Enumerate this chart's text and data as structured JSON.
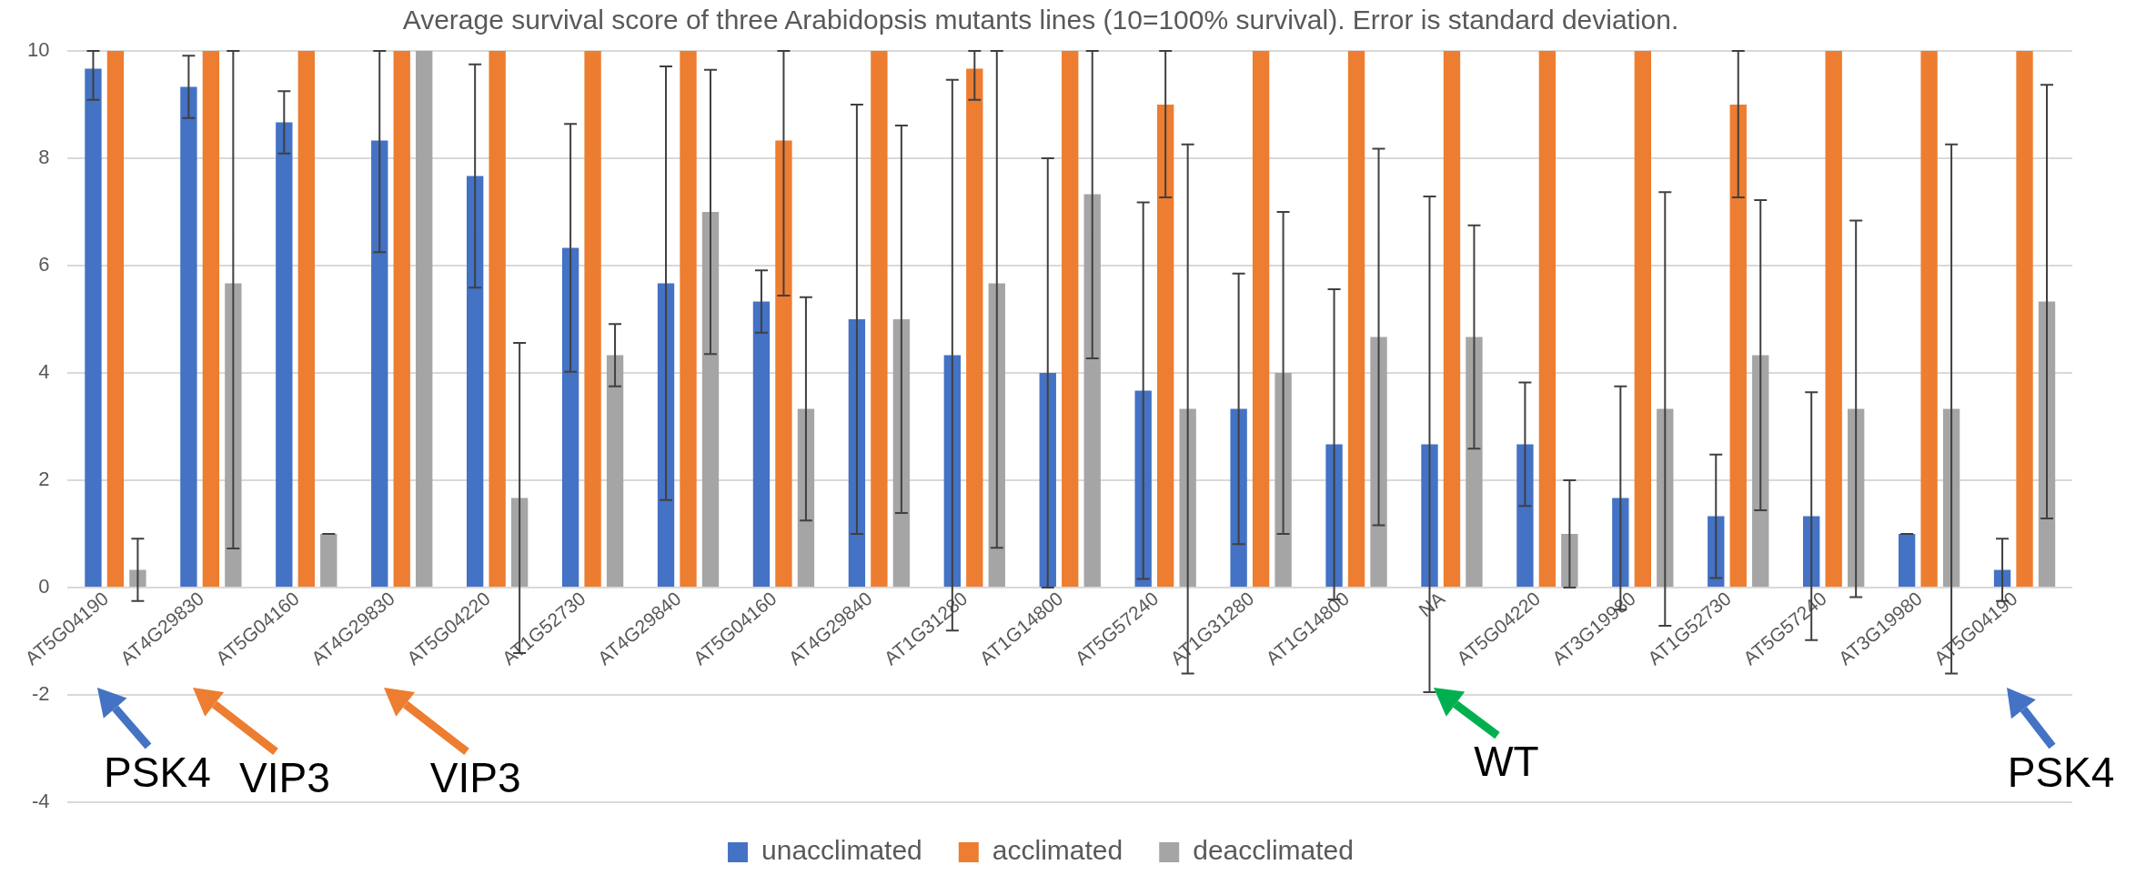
{
  "chart_data": {
    "type": "bar",
    "title": "Average survival score of three Arabidopsis mutants lines (10=100% survival). Error is standard deviation.",
    "categories": [
      "AT5G04190",
      "AT4G29830",
      "AT5G04160",
      "AT4G29830",
      "AT5G04220",
      "AT1G52730",
      "AT4G29840",
      "AT5G04160",
      "AT4G29840",
      "AT1G31280",
      "AT1G14800",
      "AT5G57240",
      "AT1G31280",
      "AT1G14800",
      "NA",
      "AT5G04220",
      "AT3G19980",
      "AT1G52730",
      "AT5G57240",
      "AT3G19980",
      "AT5G04190"
    ],
    "series": [
      {
        "name": "unacclimated",
        "color": "#4472c4",
        "values": [
          9.67,
          9.33,
          8.67,
          8.33,
          7.67,
          6.33,
          5.67,
          5.33,
          5,
          4.33,
          4,
          3.67,
          3.33,
          2.67,
          2.67,
          2.67,
          1.67,
          1.33,
          1.33,
          1,
          0.33
        ],
        "errors": [
          [
            9.09,
            10
          ],
          0.58,
          0.58,
          [
            6.25,
            10
          ],
          2.08,
          2.31,
          4.04,
          0.58,
          4,
          5.13,
          4,
          3.51,
          2.52,
          2.89,
          4.62,
          1.15,
          2.08,
          1.15,
          2.31,
          0,
          0.58
        ]
      },
      {
        "name": "acclimated",
        "color": "#ed7d31",
        "values": [
          10,
          10,
          10,
          10,
          10,
          10,
          10,
          8.33,
          10,
          9.67,
          10,
          9,
          10,
          10,
          10,
          10,
          10,
          9,
          10,
          10,
          10
        ],
        "errors": [
          null,
          null,
          null,
          null,
          null,
          null,
          null,
          [
            5.44,
            10
          ],
          null,
          [
            9.09,
            10
          ],
          null,
          [
            7.27,
            10
          ],
          null,
          null,
          null,
          null,
          null,
          [
            7.27,
            10
          ],
          null,
          null,
          null
        ]
      },
      {
        "name": "deacclimated",
        "color": "#a5a5a5",
        "values": [
          0.33,
          5.67,
          1,
          10,
          1.67,
          4.33,
          7,
          3.33,
          5,
          5.67,
          7.33,
          3.33,
          4,
          4.67,
          4.67,
          1,
          3.33,
          4.33,
          3.33,
          3.33,
          5.33
        ],
        "errors": [
          0.58,
          [
            0.73,
            10
          ],
          0,
          null,
          2.89,
          0.58,
          2.65,
          2.08,
          3.61,
          [
            0.74,
            10
          ],
          [
            4.27,
            10
          ],
          4.93,
          3,
          3.51,
          2.08,
          1,
          4.04,
          2.89,
          3.51,
          4.93,
          4.04
        ]
      }
    ],
    "ylim": [
      -4,
      10
    ],
    "yticks": [
      -4,
      -2,
      0,
      2,
      4,
      6,
      8,
      10
    ],
    "grid": "y",
    "legend": "bottom",
    "annotations": [
      "PSK4",
      "VIP3",
      "VIP3",
      "WT",
      "PSK4"
    ]
  }
}
